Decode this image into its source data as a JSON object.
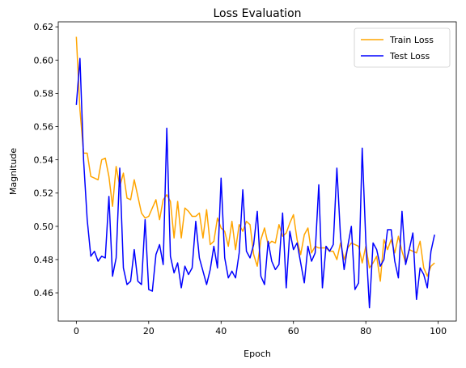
{
  "chart_data": {
    "type": "line",
    "title": "Loss Evaluation",
    "xlabel": "Epoch",
    "ylabel": "Magnitude",
    "xlim": [
      -5,
      105
    ],
    "ylim": [
      0.443,
      0.623
    ],
    "xticks": [
      0,
      20,
      40,
      60,
      80,
      100
    ],
    "yticks": [
      0.46,
      0.48,
      0.5,
      0.52,
      0.54,
      0.56,
      0.58,
      0.6,
      0.62
    ],
    "grid": false,
    "legend_position": "top-right",
    "x": [
      0,
      1,
      2,
      3,
      4,
      5,
      6,
      7,
      8,
      9,
      10,
      11,
      12,
      13,
      14,
      15,
      16,
      17,
      18,
      19,
      20,
      21,
      22,
      23,
      24,
      25,
      26,
      27,
      28,
      29,
      30,
      31,
      32,
      33,
      34,
      35,
      36,
      37,
      38,
      39,
      40,
      41,
      42,
      43,
      44,
      45,
      46,
      47,
      48,
      49,
      50,
      51,
      52,
      53,
      54,
      55,
      56,
      57,
      58,
      59,
      60,
      61,
      62,
      63,
      64,
      65,
      66,
      67,
      68,
      69,
      70,
      71,
      72,
      73,
      74,
      75,
      76,
      77,
      78,
      79,
      80,
      81,
      82,
      83,
      84,
      85,
      86,
      87,
      88,
      89,
      90,
      91,
      92,
      93,
      94,
      95,
      96,
      97,
      98,
      99
    ],
    "series": [
      {
        "name": "Train Loss",
        "color": "#ffa500",
        "values": [
          0.614,
          0.57,
          0.544,
          0.544,
          0.53,
          0.529,
          0.528,
          0.54,
          0.541,
          0.53,
          0.512,
          0.536,
          0.524,
          0.532,
          0.517,
          0.516,
          0.528,
          0.518,
          0.508,
          0.505,
          0.506,
          0.511,
          0.516,
          0.504,
          0.516,
          0.519,
          0.515,
          0.493,
          0.515,
          0.493,
          0.511,
          0.509,
          0.506,
          0.506,
          0.508,
          0.493,
          0.51,
          0.489,
          0.491,
          0.505,
          0.499,
          0.497,
          0.488,
          0.503,
          0.486,
          0.501,
          0.497,
          0.503,
          0.501,
          0.483,
          0.476,
          0.492,
          0.499,
          0.489,
          0.491,
          0.49,
          0.501,
          0.494,
          0.496,
          0.502,
          0.507,
          0.492,
          0.483,
          0.495,
          0.499,
          0.484,
          0.488,
          0.487,
          0.487,
          0.487,
          0.485,
          0.485,
          0.48,
          0.49,
          0.48,
          0.487,
          0.49,
          0.489,
          0.488,
          0.478,
          0.488,
          0.475,
          0.478,
          0.482,
          0.467,
          0.492,
          0.486,
          0.492,
          0.484,
          0.494,
          0.485,
          0.478,
          0.486,
          0.485,
          0.484,
          0.491,
          0.475,
          0.47,
          0.476,
          0.478
        ]
      },
      {
        "name": "Test Loss",
        "color": "#0000ff",
        "values": [
          0.573,
          0.601,
          0.54,
          0.504,
          0.482,
          0.485,
          0.479,
          0.482,
          0.481,
          0.518,
          0.47,
          0.481,
          0.535,
          0.475,
          0.465,
          0.467,
          0.486,
          0.467,
          0.465,
          0.504,
          0.462,
          0.461,
          0.483,
          0.489,
          0.477,
          0.559,
          0.482,
          0.472,
          0.478,
          0.463,
          0.476,
          0.471,
          0.475,
          0.503,
          0.481,
          0.473,
          0.465,
          0.474,
          0.488,
          0.475,
          0.529,
          0.481,
          0.469,
          0.473,
          0.469,
          0.484,
          0.522,
          0.485,
          0.481,
          0.489,
          0.509,
          0.47,
          0.465,
          0.491,
          0.479,
          0.474,
          0.477,
          0.508,
          0.463,
          0.497,
          0.486,
          0.49,
          0.478,
          0.466,
          0.488,
          0.479,
          0.484,
          0.525,
          0.463,
          0.488,
          0.485,
          0.489,
          0.535,
          0.494,
          0.474,
          0.488,
          0.5,
          0.462,
          0.466,
          0.547,
          0.491,
          0.451,
          0.49,
          0.486,
          0.476,
          0.48,
          0.498,
          0.498,
          0.479,
          0.469,
          0.509,
          0.477,
          0.486,
          0.496,
          0.456,
          0.475,
          0.471,
          0.463,
          0.485,
          0.495
        ]
      }
    ]
  }
}
